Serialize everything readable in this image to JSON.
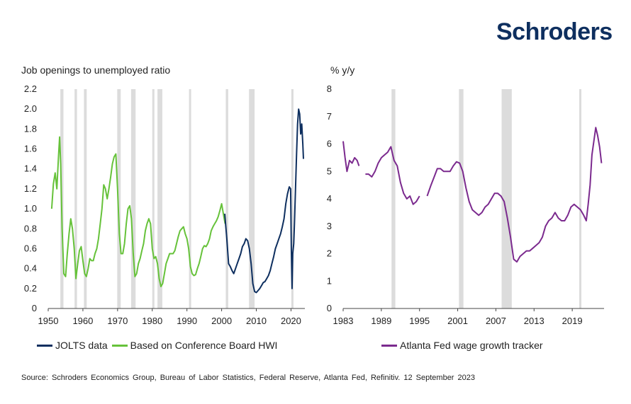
{
  "brand": {
    "name": "Schroders"
  },
  "source": "Source:  Schroders  Economics  Group,  Bureau  of  Labor  Statistics,  Federal  Reserve,  Atlanta  Fed,  Refinitiv.  12  September  2023",
  "colors": {
    "jolts": "#0e2f5f",
    "hwi": "#66c23a",
    "atlanta": "#7b2a8e",
    "recession": "#dcdcdc",
    "grid": "#bfbfbf"
  },
  "chart_data": [
    {
      "type": "line",
      "ylabel": "Job openings to unemployed ratio",
      "xlim": [
        1950,
        2024
      ],
      "ylim": [
        0,
        2.2
      ],
      "x_ticks": [
        1950,
        1960,
        1970,
        1980,
        1990,
        2000,
        2010,
        2020
      ],
      "y_ticks": [
        "0",
        "0.2",
        "0.4",
        "0.6",
        "0.8",
        "1.0",
        "1.2",
        "1.4",
        "1.6",
        "1.8",
        "2.0",
        "2.2"
      ],
      "recessions": [
        [
          1953.5,
          1954.4
        ],
        [
          1957.6,
          1958.3
        ],
        [
          1960.3,
          1961.1
        ],
        [
          1969.9,
          1970.9
        ],
        [
          1973.9,
          1975.2
        ],
        [
          1980.0,
          1980.6
        ],
        [
          1981.5,
          1982.9
        ],
        [
          1990.6,
          1991.2
        ],
        [
          2001.2,
          2001.9
        ],
        [
          2007.9,
          2009.5
        ],
        [
          2020.1,
          2020.4
        ]
      ],
      "series": [
        {
          "name": "Based on Conference Board HWI",
          "color": "#66c23a",
          "x": [
            1951.0,
            1951.5,
            1952.0,
            1952.5,
            1953.0,
            1953.3,
            1953.6,
            1954.0,
            1954.5,
            1955.0,
            1955.5,
            1956.0,
            1956.5,
            1957.0,
            1957.5,
            1958.0,
            1958.5,
            1959.0,
            1959.5,
            1960.0,
            1960.5,
            1961.0,
            1961.5,
            1962.0,
            1962.5,
            1963.0,
            1963.5,
            1964.0,
            1964.5,
            1965.0,
            1965.5,
            1966.0,
            1966.5,
            1967.0,
            1967.5,
            1968.0,
            1968.5,
            1969.0,
            1969.5,
            1970.0,
            1970.5,
            1971.0,
            1971.5,
            1972.0,
            1972.5,
            1973.0,
            1973.5,
            1974.0,
            1974.5,
            1975.0,
            1975.5,
            1976.0,
            1976.5,
            1977.0,
            1977.5,
            1978.0,
            1978.5,
            1979.0,
            1979.5,
            1980.0,
            1980.5,
            1981.0,
            1981.5,
            1982.0,
            1982.5,
            1983.0,
            1983.5,
            1984.0,
            1984.5,
            1985.0,
            1985.5,
            1986.0,
            1986.5,
            1987.0,
            1987.5,
            1988.0,
            1988.5,
            1989.0,
            1989.5,
            1990.0,
            1990.5,
            1991.0,
            1991.5,
            1992.0,
            1992.5,
            1993.0,
            1993.5,
            1994.0,
            1994.5,
            1995.0,
            1995.5,
            1996.0,
            1996.5,
            1997.0,
            1997.5,
            1998.0,
            1998.5,
            1999.0,
            1999.5,
            2000.0,
            2000.5,
            2001.0
          ],
          "y": [
            1.0,
            1.25,
            1.36,
            1.2,
            1.55,
            1.72,
            1.45,
            0.8,
            0.35,
            0.32,
            0.55,
            0.75,
            0.9,
            0.8,
            0.6,
            0.3,
            0.45,
            0.58,
            0.62,
            0.48,
            0.35,
            0.32,
            0.4,
            0.5,
            0.48,
            0.48,
            0.55,
            0.6,
            0.7,
            0.85,
            1.0,
            1.24,
            1.2,
            1.1,
            1.2,
            1.32,
            1.45,
            1.52,
            1.55,
            1.2,
            0.75,
            0.55,
            0.55,
            0.65,
            0.85,
            1.0,
            1.03,
            0.9,
            0.55,
            0.32,
            0.35,
            0.45,
            0.5,
            0.58,
            0.65,
            0.78,
            0.85,
            0.9,
            0.85,
            0.6,
            0.5,
            0.52,
            0.45,
            0.3,
            0.22,
            0.25,
            0.35,
            0.45,
            0.5,
            0.55,
            0.55,
            0.55,
            0.58,
            0.65,
            0.72,
            0.78,
            0.8,
            0.82,
            0.75,
            0.7,
            0.6,
            0.42,
            0.35,
            0.33,
            0.34,
            0.4,
            0.45,
            0.52,
            0.6,
            0.63,
            0.62,
            0.65,
            0.7,
            0.78,
            0.82,
            0.85,
            0.88,
            0.92,
            0.98,
            1.05,
            0.95,
            0.85
          ]
        },
        {
          "name": "JOLTS data",
          "color": "#0e2f5f",
          "x": [
            2000.9,
            2001.5,
            2002.0,
            2002.5,
            2003.0,
            2003.5,
            2004.0,
            2004.5,
            2005.0,
            2005.5,
            2006.0,
            2006.5,
            2007.0,
            2007.5,
            2008.0,
            2008.5,
            2009.0,
            2009.5,
            2010.0,
            2010.5,
            2011.0,
            2011.5,
            2012.0,
            2012.5,
            2013.0,
            2013.5,
            2014.0,
            2014.5,
            2015.0,
            2015.5,
            2016.0,
            2016.5,
            2017.0,
            2017.5,
            2018.0,
            2018.5,
            2019.0,
            2019.5,
            2019.9,
            2020.1,
            2020.3,
            2020.5,
            2020.8,
            2021.0,
            2021.3,
            2021.6,
            2021.9,
            2022.2,
            2022.5,
            2022.8,
            2023.1,
            2023.4,
            2023.6
          ],
          "y": [
            0.95,
            0.7,
            0.45,
            0.42,
            0.38,
            0.35,
            0.4,
            0.45,
            0.5,
            0.55,
            0.62,
            0.65,
            0.7,
            0.68,
            0.6,
            0.45,
            0.25,
            0.17,
            0.16,
            0.18,
            0.2,
            0.23,
            0.26,
            0.27,
            0.3,
            0.33,
            0.38,
            0.45,
            0.52,
            0.6,
            0.65,
            0.7,
            0.75,
            0.82,
            0.9,
            1.05,
            1.15,
            1.22,
            1.2,
            0.6,
            0.2,
            0.55,
            0.65,
            0.85,
            1.2,
            1.55,
            1.85,
            2.0,
            1.95,
            1.75,
            1.85,
            1.65,
            1.5
          ]
        }
      ]
    },
    {
      "type": "line",
      "ylabel": "% y/y",
      "xlim": [
        1983,
        2024
      ],
      "ylim": [
        0,
        8
      ],
      "x_ticks": [
        1983,
        1989,
        1995,
        2001,
        2007,
        2013,
        2019
      ],
      "y_ticks": [
        "0",
        "1",
        "2",
        "3",
        "4",
        "5",
        "6",
        "7",
        "8"
      ],
      "recessions": [
        [
          1990.6,
          1991.2
        ],
        [
          2001.2,
          2001.9
        ],
        [
          2007.9,
          2009.5
        ],
        [
          2020.1,
          2020.4
        ]
      ],
      "series": [
        {
          "name": "Atlanta Fed wage growth tracker",
          "color": "#7b2a8e",
          "segments": [
            {
              "x": [
                1983.0,
                1983.3,
                1983.6,
                1984.0,
                1984.4,
                1984.8,
                1985.2,
                1985.5
              ],
              "y": [
                6.1,
                5.5,
                5.0,
                5.4,
                5.3,
                5.5,
                5.4,
                5.2
              ]
            },
            {
              "x": [
                1986.5,
                1987.0,
                1987.5,
                1988.0,
                1988.5,
                1989.0,
                1989.5,
                1990.0,
                1990.5,
                1991.0,
                1991.5,
                1992.0,
                1992.5,
                1993.0,
                1993.5,
                1994.0,
                1994.5,
                1995.0
              ],
              "y": [
                4.9,
                4.9,
                4.8,
                5.0,
                5.3,
                5.5,
                5.6,
                5.7,
                5.9,
                5.4,
                5.2,
                4.6,
                4.2,
                4.0,
                4.1,
                3.8,
                3.9,
                4.1
              ]
            },
            {
              "x": [
                1996.2,
                1996.8,
                1997.3,
                1997.8,
                1998.3,
                1998.8,
                1999.3,
                1999.8,
                2000.3,
                2000.8,
                2001.3,
                2001.8,
                2002.3,
                2002.8,
                2003.3,
                2003.8,
                2004.3,
                2004.8,
                2005.3,
                2005.8,
                2006.3,
                2006.8,
                2007.3,
                2007.8,
                2008.3,
                2008.8,
                2009.3,
                2009.8,
                2010.3,
                2010.8,
                2011.3,
                2011.8,
                2012.3,
                2012.8,
                2013.3,
                2013.8,
                2014.3,
                2014.8,
                2015.3,
                2015.8,
                2016.3,
                2016.8,
                2017.3,
                2017.8,
                2018.3,
                2018.8,
                2019.3,
                2019.8,
                2020.3,
                2020.8,
                2021.2,
                2021.5,
                2021.8,
                2022.1,
                2022.4,
                2022.7,
                2023.0,
                2023.3,
                2023.6
              ],
              "y": [
                4.1,
                4.5,
                4.8,
                5.1,
                5.1,
                5.0,
                5.0,
                5.0,
                5.2,
                5.35,
                5.3,
                5.0,
                4.4,
                3.9,
                3.6,
                3.5,
                3.4,
                3.5,
                3.7,
                3.8,
                4.0,
                4.2,
                4.2,
                4.1,
                3.9,
                3.3,
                2.6,
                1.8,
                1.7,
                1.9,
                2.0,
                2.1,
                2.1,
                2.2,
                2.3,
                2.4,
                2.6,
                3.0,
                3.2,
                3.3,
                3.5,
                3.3,
                3.2,
                3.2,
                3.4,
                3.7,
                3.8,
                3.7,
                3.6,
                3.4,
                3.2,
                3.8,
                4.5,
                5.6,
                6.1,
                6.6,
                6.3,
                5.9,
                5.3
              ]
            }
          ]
        }
      ]
    }
  ]
}
